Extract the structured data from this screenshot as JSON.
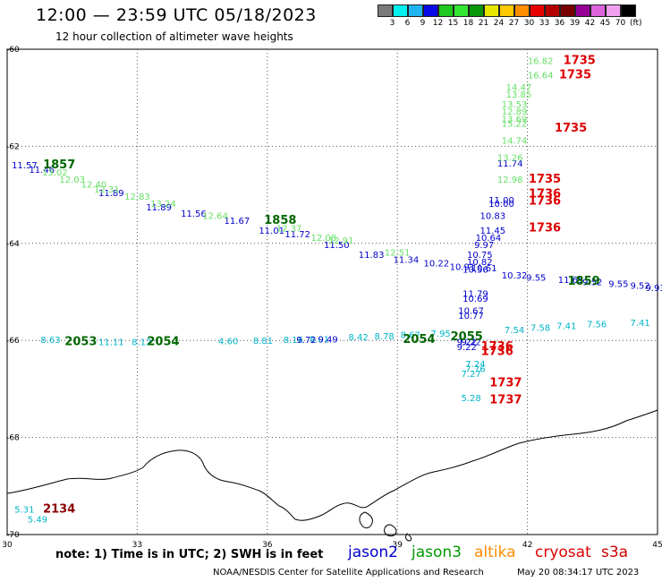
{
  "title": "12:00 — 23:59 UTC 05/18/2023",
  "subtitle": "12 hour collection of altimeter wave heights",
  "legend": {
    "colors": [
      "#7a7a7a",
      "#00f0f0",
      "#1fb4f0",
      "#0a0ae6",
      "#1ec81e",
      "#32e632",
      "#0a960a",
      "#e6e600",
      "#ffc800",
      "#ff8c00",
      "#e60000",
      "#b40000",
      "#780000",
      "#960096",
      "#dc64dc",
      "#f0a0f0",
      "#000000"
    ],
    "labels": [
      "3",
      "6",
      "9",
      "12",
      "15",
      "18",
      "21",
      "24",
      "27",
      "30",
      "33",
      "36",
      "39",
      "42",
      "45",
      "70"
    ],
    "unit": "(ft)"
  },
  "axes": {
    "lat_labels": [
      "-60",
      "-62",
      "-64",
      "-66",
      "-68",
      "-70"
    ],
    "lon_labels": [
      "30",
      "33",
      "36",
      "39",
      "42",
      "45"
    ]
  },
  "tracks": [
    {
      "sat": "jason2",
      "color": "#0000cc",
      "label": "1857",
      "points": [
        {
          "lon": 30.4,
          "lat": -62.45,
          "v": "11.57"
        },
        {
          "lon": 30.8,
          "lat": -62.55,
          "v": "11.46"
        },
        {
          "lon": 32.4,
          "lat": -63.03,
          "v": "11.89"
        },
        {
          "lon": 33.5,
          "lat": -63.32,
          "v": "11.89"
        },
        {
          "lon": 34.3,
          "lat": -63.45,
          "v": "11.56"
        },
        {
          "lon": 35.3,
          "lat": -63.6,
          "v": "11.67"
        },
        {
          "lon": 36.1,
          "lat": -63.8,
          "v": "11.01"
        },
        {
          "lon": 36.7,
          "lat": -63.87,
          "v": "11.72"
        },
        {
          "lon": 37.6,
          "lat": -64.1,
          "v": "11.50"
        },
        {
          "lon": 38.4,
          "lat": -64.3,
          "v": "11.83"
        },
        {
          "lon": 39.2,
          "lat": -64.4,
          "v": "11.34"
        },
        {
          "lon": 39.9,
          "lat": -64.47,
          "v": "10.22"
        },
        {
          "lon": 40.5,
          "lat": -64.55,
          "v": "10.91"
        },
        {
          "lon": 41.0,
          "lat": -64.58,
          "v": "10.61"
        },
        {
          "lon": 41.7,
          "lat": -64.72,
          "v": "10.32"
        },
        {
          "lon": 42.2,
          "lat": -64.77,
          "v": "9.55"
        },
        {
          "lon": 43.0,
          "lat": -64.82,
          "v": "11.65"
        },
        {
          "lon": 43.5,
          "lat": -64.86,
          "v": "9.52"
        },
        {
          "lon": 44.1,
          "lat": -64.9,
          "v": "9.55"
        },
        {
          "lon": 44.6,
          "lat": -64.94,
          "v": "9.52"
        },
        {
          "lon": 44.95,
          "lat": -64.98,
          "v": "9.93"
        }
      ]
    },
    {
      "sat": "jason2",
      "color": "#0000cc",
      "label": "",
      "points": [
        {
          "lon": 41.6,
          "lat": -62.42,
          "v": "11.74"
        },
        {
          "lon": 41.4,
          "lat": -63.17,
          "v": "11.00"
        },
        {
          "lon": 41.4,
          "lat": -63.25,
          "v": "10.00"
        },
        {
          "lon": 41.2,
          "lat": -63.5,
          "v": "10.83"
        },
        {
          "lon": 41.2,
          "lat": -63.8,
          "v": "11.45"
        },
        {
          "lon": 41.1,
          "lat": -63.95,
          "v": "10.64"
        },
        {
          "lon": 41.0,
          "lat": -64.1,
          "v": "9.97"
        },
        {
          "lon": 40.9,
          "lat": -64.3,
          "v": "10.75"
        },
        {
          "lon": 40.9,
          "lat": -64.45,
          "v": "10.82"
        },
        {
          "lon": 40.8,
          "lat": -64.6,
          "v": "10.56"
        },
        {
          "lon": 40.8,
          "lat": -65.1,
          "v": "11.79"
        },
        {
          "lon": 40.8,
          "lat": -65.2,
          "v": "10.69"
        },
        {
          "lon": 40.7,
          "lat": -65.45,
          "v": "10.67"
        },
        {
          "lon": 40.7,
          "lat": -65.55,
          "v": "10.77"
        },
        {
          "lon": 40.6,
          "lat": -66.1,
          "v": "9.22"
        },
        {
          "lon": 40.6,
          "lat": -66.2,
          "v": "9.22"
        }
      ]
    },
    {
      "sat": "jason3",
      "color": "#66e066",
      "label": "",
      "points": [
        {
          "lon": 31.1,
          "lat": -62.6,
          "v": "13.02"
        },
        {
          "lon": 31.5,
          "lat": -62.75,
          "v": "12.03"
        },
        {
          "lon": 32.0,
          "lat": -62.85,
          "v": "12.40"
        },
        {
          "lon": 32.3,
          "lat": -62.95,
          "v": "12.31"
        },
        {
          "lon": 33.0,
          "lat": -63.1,
          "v": "12.83"
        },
        {
          "lon": 33.6,
          "lat": -63.25,
          "v": "13.24"
        },
        {
          "lon": 34.8,
          "lat": -63.5,
          "v": "12.64"
        },
        {
          "lon": 36.5,
          "lat": -63.75,
          "v": "12.37"
        },
        {
          "lon": 37.3,
          "lat": -63.95,
          "v": "12.08"
        },
        {
          "lon": 37.7,
          "lat": -64.0,
          "v": "12.91"
        },
        {
          "lon": 39.0,
          "lat": -64.25,
          "v": "12.51"
        },
        {
          "lon": 42.3,
          "lat": -60.3,
          "v": "16.82"
        },
        {
          "lon": 42.3,
          "lat": -60.6,
          "v": "16.64"
        },
        {
          "lon": 41.8,
          "lat": -60.85,
          "v": "14.47"
        },
        {
          "lon": 41.8,
          "lat": -61.0,
          "v": "13.85"
        },
        {
          "lon": 41.7,
          "lat": -61.2,
          "v": "13.53"
        },
        {
          "lon": 41.7,
          "lat": -61.35,
          "v": "12.89"
        },
        {
          "lon": 41.7,
          "lat": -61.5,
          "v": "13.69"
        },
        {
          "lon": 41.7,
          "lat": -61.6,
          "v": "15.22"
        },
        {
          "lon": 41.7,
          "lat": -61.95,
          "v": "14.74"
        },
        {
          "lon": 41.6,
          "lat": -62.3,
          "v": "13.26"
        },
        {
          "lon": 41.6,
          "lat": -62.75,
          "v": "12.98"
        }
      ]
    },
    {
      "sat": "jason3",
      "color": "#006600",
      "label": "",
      "points": []
    },
    {
      "sat": "cryosat",
      "color": "#dd0000",
      "label": "",
      "points": []
    },
    {
      "sat": "s3a",
      "color": "#00b4c8",
      "label": "",
      "points": [
        {
          "lon": 31.0,
          "lat": -66.05,
          "v": "8.63"
        },
        {
          "lon": 32.4,
          "lat": -66.1,
          "v": "11.11"
        },
        {
          "lon": 33.1,
          "lat": -66.1,
          "v": "8.12"
        },
        {
          "lon": 35.1,
          "lat": -66.08,
          "v": "4.60"
        },
        {
          "lon": 35.9,
          "lat": -66.07,
          "v": "8.81"
        },
        {
          "lon": 36.6,
          "lat": -66.05,
          "v": "8.16"
        },
        {
          "lon": 37.2,
          "lat": -66.04,
          "v": "8.01"
        },
        {
          "lon": 38.1,
          "lat": -66.0,
          "v": "8.42"
        },
        {
          "lon": 38.7,
          "lat": -65.98,
          "v": "8.78"
        },
        {
          "lon": 39.3,
          "lat": -65.95,
          "v": "8.67"
        },
        {
          "lon": 40.0,
          "lat": -65.92,
          "v": "7.95"
        },
        {
          "lon": 41.7,
          "lat": -65.85,
          "v": "7.54"
        },
        {
          "lon": 42.3,
          "lat": -65.8,
          "v": "7.58"
        },
        {
          "lon": 42.9,
          "lat": -65.77,
          "v": "7.41"
        },
        {
          "lon": 43.6,
          "lat": -65.73,
          "v": "7.56"
        },
        {
          "lon": 44.6,
          "lat": -65.7,
          "v": "7.41"
        },
        {
          "lon": 40.8,
          "lat": -66.55,
          "v": "7.24"
        },
        {
          "lon": 40.8,
          "lat": -66.65,
          "v": "7.76"
        },
        {
          "lon": 40.7,
          "lat": -66.75,
          "v": "7.27"
        },
        {
          "lon": 40.7,
          "lat": -67.25,
          "v": "5.28"
        },
        {
          "lon": 30.4,
          "lat": -69.55,
          "v": "5.31"
        },
        {
          "lon": 30.7,
          "lat": -69.75,
          "v": "5.49"
        }
      ]
    },
    {
      "sat": "jason2",
      "color": "#0000cc",
      "label": "",
      "points": [
        {
          "lon": 36.9,
          "lat": -66.05,
          "v": "9.72"
        },
        {
          "lon": 37.4,
          "lat": -66.04,
          "v": "9.49"
        },
        {
          "lon": 40.7,
          "lat": -66.1,
          "v": "9.22"
        }
      ]
    }
  ],
  "time_labels": [
    {
      "text": "1857",
      "color": "#006600",
      "lon": 31.2,
      "lat": -62.45
    },
    {
      "text": "1858",
      "color": "#006600",
      "lon": 36.3,
      "lat": -63.6
    },
    {
      "text": "1859",
      "color": "#006600",
      "lon": 43.3,
      "lat": -64.85
    },
    {
      "text": "2053",
      "color": "#006600",
      "lon": 31.7,
      "lat": -66.1
    },
    {
      "text": "2054",
      "color": "#006600",
      "lon": 33.6,
      "lat": -66.1
    },
    {
      "text": "2054",
      "color": "#006600",
      "lon": 39.5,
      "lat": -66.05
    },
    {
      "text": "2055",
      "color": "#006600",
      "lon": 40.6,
      "lat": -66.0
    },
    {
      "text": "1735",
      "color": "#dd0000",
      "lon": 43.2,
      "lat": -60.3
    },
    {
      "text": "1735",
      "color": "#dd0000",
      "lon": 43.1,
      "lat": -60.6
    },
    {
      "text": "1735",
      "color": "#dd0000",
      "lon": 43.0,
      "lat": -61.7
    },
    {
      "text": "1735",
      "color": "#dd0000",
      "lon": 42.4,
      "lat": -62.75
    },
    {
      "text": "1736",
      "color": "#dd0000",
      "lon": 42.4,
      "lat": -63.05
    },
    {
      "text": "1736",
      "color": "#dd0000",
      "lon": 42.4,
      "lat": -63.2
    },
    {
      "text": "1736",
      "color": "#dd0000",
      "lon": 42.4,
      "lat": -63.75
    },
    {
      "text": "1736",
      "color": "#dd0000",
      "lon": 41.3,
      "lat": -66.2
    },
    {
      "text": "1736",
      "color": "#dd0000",
      "lon": 41.3,
      "lat": -66.3
    },
    {
      "text": "1737",
      "color": "#dd0000",
      "lon": 41.5,
      "lat": -66.95
    },
    {
      "text": "1737",
      "color": "#dd0000",
      "lon": 41.5,
      "lat": -67.3
    },
    {
      "text": "2134",
      "color": "#8b0000",
      "lon": 31.2,
      "lat": -69.55
    }
  ],
  "footer": {
    "note": "note:  1) Time is in UTC;  2) SWH is in feet",
    "sats": [
      {
        "name": "jason2",
        "color": "#0000cc"
      },
      {
        "name": "jason3",
        "color": "#009900"
      },
      {
        "name": "altika",
        "color": "#ff8c00"
      },
      {
        "name": "cryosat",
        "color": "#dd0000"
      },
      {
        "name": "s3a",
        "color": "#cc0000"
      }
    ],
    "credit": "NOAA/NESDIS Center for Satellite Applications and Research",
    "timestamp": "May 20 08:34:17 UTC 2023"
  }
}
